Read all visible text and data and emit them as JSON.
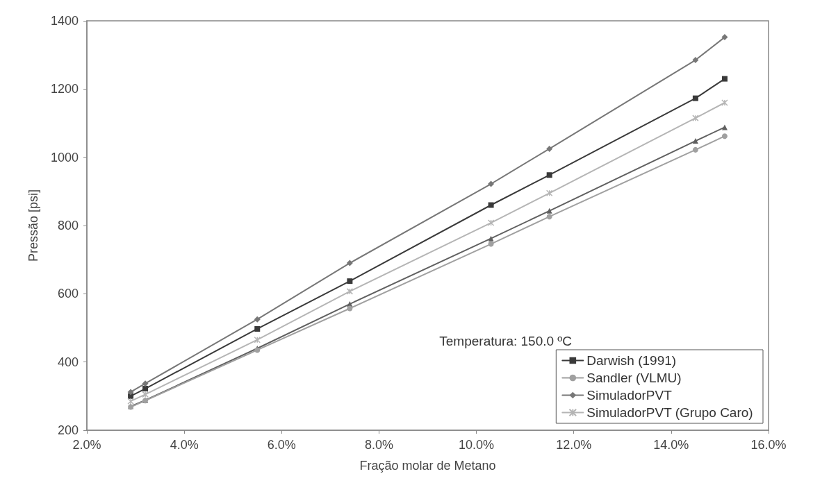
{
  "chart_data": {
    "type": "line",
    "xlabel": "Fração molar de Metano",
    "ylabel": "Pressão [psi]",
    "legend_title": "Temperatura: 150.0 ºC",
    "x": [
      2.9,
      3.2,
      5.5,
      7.4,
      10.3,
      11.5,
      14.5,
      15.1
    ],
    "xlim": [
      2,
      16
    ],
    "xticks": [
      {
        "value": 2,
        "label": "2.0%"
      },
      {
        "value": 4,
        "label": "4.0%"
      },
      {
        "value": 6,
        "label": "6.0%"
      },
      {
        "value": 8,
        "label": "8.0%"
      },
      {
        "value": 10,
        "label": "10.0%"
      },
      {
        "value": 12,
        "label": "12.0%"
      },
      {
        "value": 14,
        "label": "14.0%"
      },
      {
        "value": 16,
        "label": "16.0%"
      }
    ],
    "ylim": [
      200,
      1400
    ],
    "yticks": [
      200,
      400,
      600,
      800,
      1000,
      1200,
      1400
    ],
    "grid": false,
    "legend": "bottom right",
    "series": [
      {
        "name": "Darwish (1991)",
        "color": "#3a3a3a",
        "marker": "square",
        "values": [
          300,
          322,
          497,
          637,
          860,
          948,
          1173,
          1230
        ]
      },
      {
        "name": "Sandler (VLMU)",
        "color": "#a0a0a0",
        "marker": "circle",
        "values": [
          268,
          287,
          435,
          557,
          746,
          826,
          1022,
          1062
        ]
      },
      {
        "color": "#606060",
        "marker": "triangle",
        "values": [
          270,
          288,
          440,
          570,
          762,
          843,
          1048,
          1088
        ]
      },
      {
        "name": "SimuladorPVT",
        "color": "#777777",
        "marker": "diamond",
        "values": [
          312,
          337,
          525,
          690,
          922,
          1025,
          1285,
          1352
        ]
      },
      {
        "name": "SimuladorPVT (Grupo Caro)",
        "color": "#b5b5b5",
        "marker": "cross",
        "values": [
          285,
          305,
          465,
          607,
          808,
          895,
          1115,
          1160
        ]
      }
    ]
  }
}
